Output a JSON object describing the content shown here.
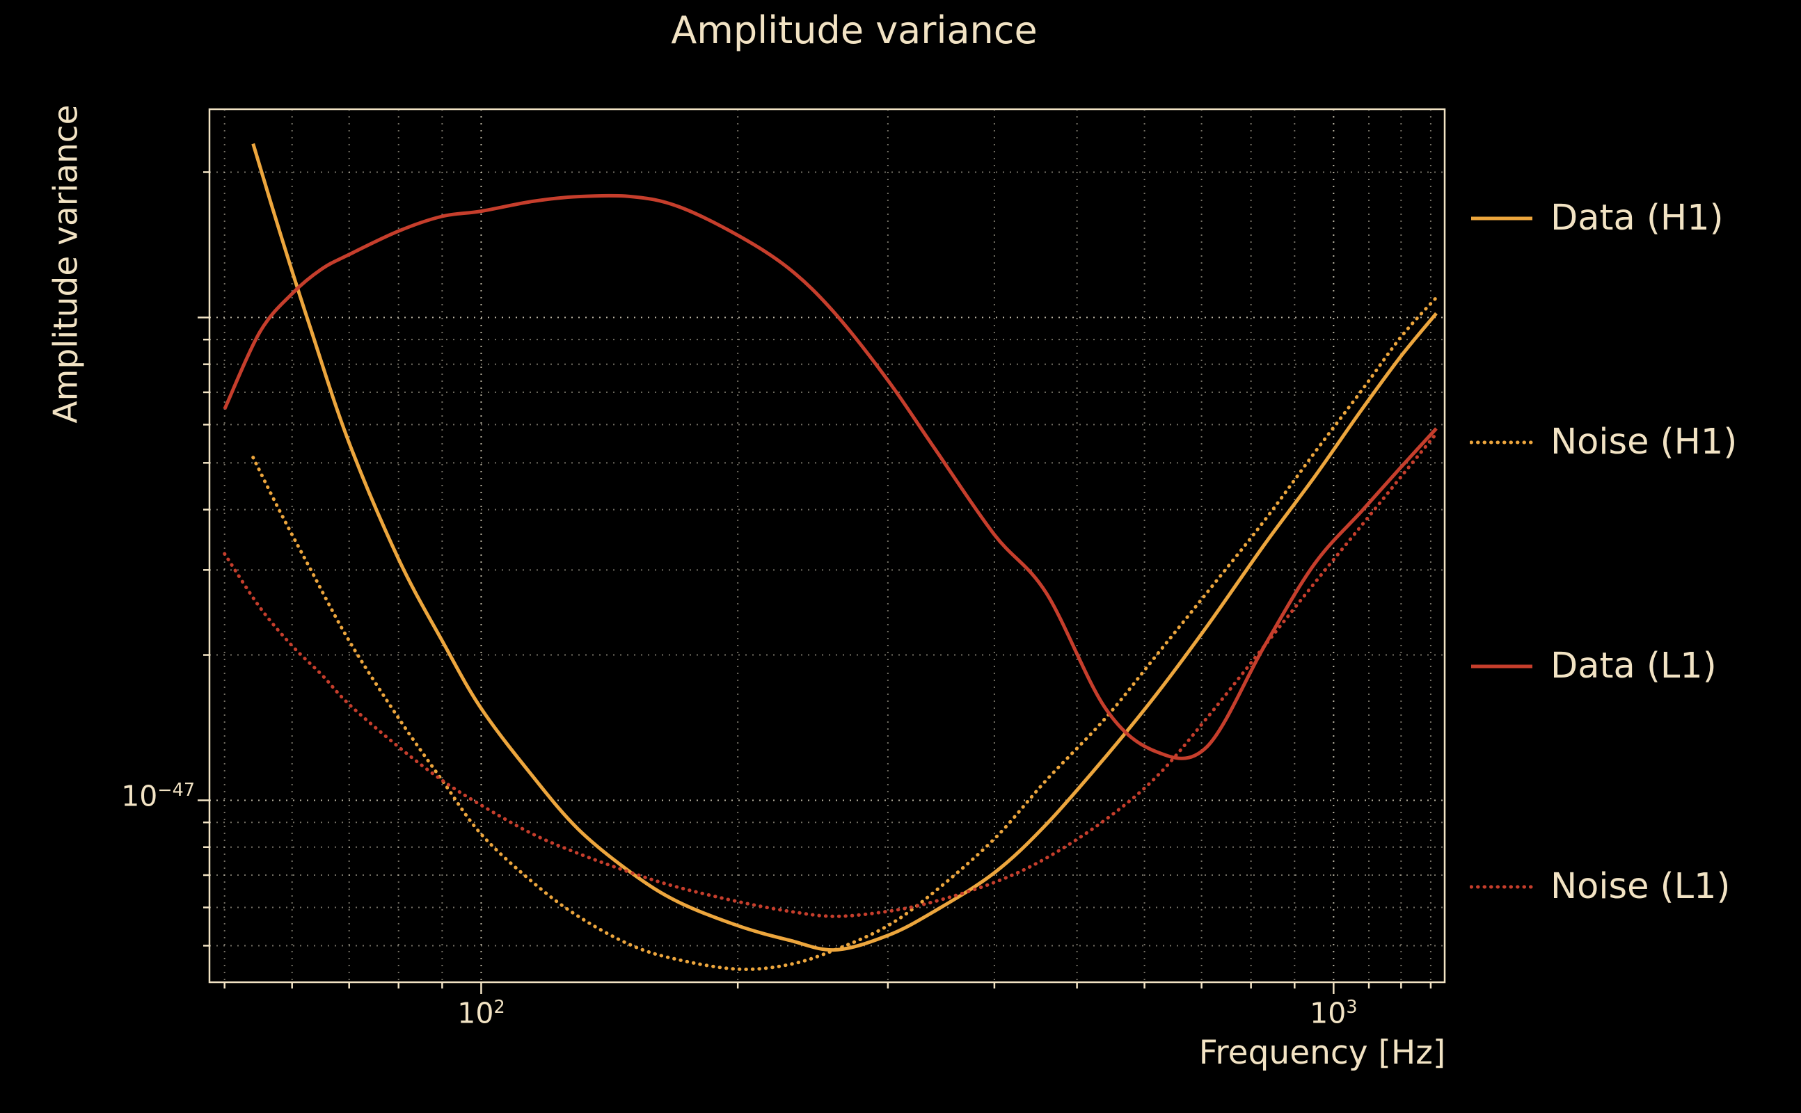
{
  "title": "Amplitude variance",
  "colors": {
    "background": "#000000",
    "text": "#f2e3c4",
    "grid": "#e9e1cb",
    "h1": "#eda63d",
    "l1": "#c63e2c"
  },
  "chart_data": {
    "type": "line",
    "title": "Amplitude variance",
    "xlabel": "Frequency [Hz]",
    "ylabel": "Amplitude variance",
    "xscale": "log",
    "yscale": "log",
    "xlim": [
      48,
      1350
    ],
    "ylim": [
      4.2e-48,
      2.7e-46
    ],
    "grid": true,
    "x_ticks": [
      {
        "v": 100,
        "base": "10",
        "exp": "2"
      },
      {
        "v": 1000,
        "base": "10",
        "exp": "3"
      }
    ],
    "y_ticks": [
      {
        "v": 1e-47,
        "base": "10",
        "exp": "−47"
      }
    ],
    "series": [
      {
        "name": "Data (H1)",
        "color": "#eda63d",
        "style": "solid",
        "x": [
          54,
          58,
          63,
          70,
          80,
          90,
          100,
          115,
          130,
          150,
          170,
          200,
          230,
          260,
          300,
          340,
          400,
          460,
          540,
          620,
          710,
          830,
          950,
          1080,
          1200,
          1320
        ],
        "y": [
          2.29e-46,
          1.51e-46,
          9.55e-47,
          5.5e-47,
          3.16e-47,
          2.14e-47,
          1.55e-47,
          1.12e-47,
          8.71e-48,
          7.08e-48,
          6.17e-48,
          5.5e-48,
          5.13e-48,
          4.9e-48,
          5.25e-48,
          5.89e-48,
          7.08e-48,
          8.91e-48,
          1.23e-47,
          1.66e-47,
          2.29e-47,
          3.39e-47,
          4.68e-47,
          6.46e-47,
          8.32e-47,
          1.02e-46
        ]
      },
      {
        "name": "Noise (H1)",
        "color": "#eda63d",
        "style": "dotted",
        "x": [
          54,
          58,
          63,
          70,
          80,
          90,
          100,
          115,
          130,
          150,
          170,
          200,
          230,
          260,
          300,
          340,
          400,
          460,
          540,
          620,
          710,
          830,
          950,
          1080,
          1200,
          1320
        ],
        "y": [
          5.13e-47,
          3.98e-47,
          3.02e-47,
          2.14e-47,
          1.48e-47,
          1.1e-47,
          8.51e-48,
          6.76e-48,
          5.75e-48,
          5.01e-48,
          4.68e-48,
          4.47e-48,
          4.57e-48,
          4.9e-48,
          5.5e-48,
          6.46e-48,
          8.32e-48,
          1.1e-47,
          1.48e-47,
          2e-47,
          2.69e-47,
          3.8e-47,
          5.25e-47,
          7.08e-47,
          9.12e-47,
          1.1e-46
        ]
      },
      {
        "name": "Data (L1)",
        "color": "#c63e2c",
        "style": "solid",
        "x": [
          50,
          55,
          60,
          65,
          70,
          80,
          90,
          100,
          115,
          130,
          150,
          170,
          200,
          230,
          260,
          300,
          340,
          400,
          460,
          540,
          620,
          710,
          830,
          950,
          1080,
          1200,
          1320
        ],
        "y": [
          6.46e-47,
          9.33e-47,
          1.12e-46,
          1.26e-46,
          1.35e-46,
          1.51e-46,
          1.62e-46,
          1.66e-46,
          1.74e-46,
          1.78e-46,
          1.78e-46,
          1.7e-46,
          1.48e-46,
          1.26e-46,
          1.02e-46,
          7.41e-47,
          5.37e-47,
          3.55e-47,
          2.69e-47,
          1.55e-47,
          1.26e-47,
          1.29e-47,
          2.09e-47,
          3.09e-47,
          3.98e-47,
          4.9e-47,
          5.89e-47
        ]
      },
      {
        "name": "Noise (L1)",
        "color": "#c63e2c",
        "style": "dotted",
        "x": [
          50,
          55,
          60,
          65,
          70,
          80,
          90,
          100,
          115,
          130,
          150,
          170,
          200,
          230,
          260,
          300,
          340,
          400,
          460,
          540,
          620,
          710,
          830,
          950,
          1080,
          1200,
          1320
        ],
        "y": [
          3.24e-47,
          2.51e-47,
          2.09e-47,
          1.82e-47,
          1.58e-47,
          1.29e-47,
          1.1e-47,
          9.77e-48,
          8.51e-48,
          7.76e-48,
          7.08e-48,
          6.61e-48,
          6.17e-48,
          5.89e-48,
          5.75e-48,
          5.89e-48,
          6.17e-48,
          6.76e-48,
          7.59e-48,
          9.12e-48,
          1.12e-47,
          1.48e-47,
          2.09e-47,
          2.82e-47,
          3.72e-47,
          4.68e-47,
          5.75e-47
        ]
      }
    ],
    "legend": {
      "position": "right",
      "entries": [
        {
          "label": "Data (H1)",
          "color": "#eda63d",
          "style": "solid"
        },
        {
          "label": "Noise (H1)",
          "color": "#eda63d",
          "style": "dotted"
        },
        {
          "label": "Data (L1)",
          "color": "#c63e2c",
          "style": "solid"
        },
        {
          "label": "Noise (L1)",
          "color": "#c63e2c",
          "style": "dotted"
        }
      ]
    }
  }
}
